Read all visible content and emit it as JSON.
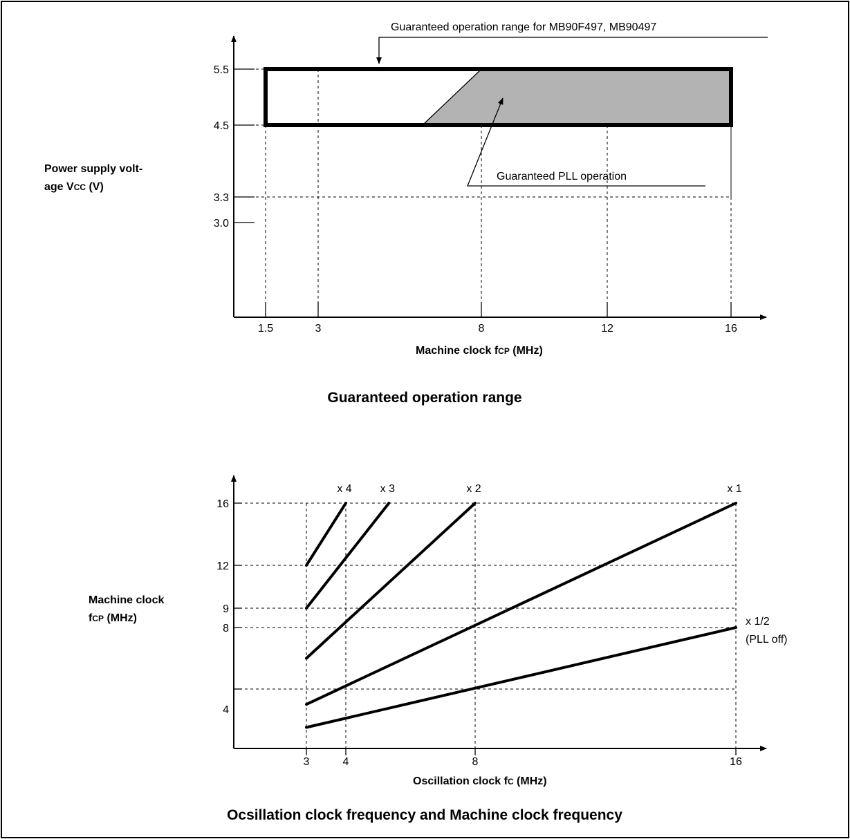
{
  "chart_data": [
    {
      "type": "area",
      "caption": "Guaranteed operation range",
      "xlabel": {
        "main": "Machine clock f",
        "sub": "CP",
        "unit": " (MHz)"
      },
      "ylabel": {
        "line1": "Power supply volt-",
        "line2_main": "age V",
        "line2_sub": "CC",
        "line2_unit": " (V)"
      },
      "x_ticks": [
        "1.5",
        "3",
        "8",
        "12",
        "16"
      ],
      "x_tick_values": [
        1.5,
        3,
        8,
        12,
        16
      ],
      "y_ticks": [
        "5.5",
        "4.5",
        "3.3",
        "3.0"
      ],
      "y_tick_values": [
        5.5,
        4.5,
        3.3,
        3.0
      ],
      "x_range": [
        0,
        18
      ],
      "y_range": [
        1.9,
        6.0
      ],
      "operation_range": {
        "x": [
          1.5,
          16
        ],
        "y": [
          4.5,
          5.5
        ]
      },
      "pll_region": [
        [
          6.2,
          4.5
        ],
        [
          8,
          5.5
        ],
        [
          16,
          5.5
        ],
        [
          16,
          4.5
        ]
      ],
      "dashed_3v3_extent": [
        1.5,
        16
      ],
      "annotations": [
        {
          "text": "Guaranteed operation range for MB90F497, MB90497",
          "target": "operation range box"
        },
        {
          "text": "Guaranteed PLL operation",
          "target": "shaded PLL region"
        }
      ],
      "fill_color": "#b3b3b3"
    },
    {
      "type": "line",
      "caption": "Ocsillation clock frequency and Machine clock frequency",
      "xlabel": {
        "main": "Oscillation clock f",
        "sub": "C",
        "unit": " (MHz)"
      },
      "ylabel": {
        "line1": "Machine clock",
        "line2_main": "f",
        "line2_sub": "CP",
        "line2_unit": " (MHz)"
      },
      "x_ticks": [
        "3",
        "4",
        "8",
        "16"
      ],
      "x_tick_values": [
        3,
        4,
        8,
        16
      ],
      "y_ticks": [
        "16",
        "12",
        "9",
        "8",
        "4"
      ],
      "y_tick_values": [
        16,
        12,
        9,
        8,
        4
      ],
      "x_range": [
        0,
        18
      ],
      "y_range": [
        0,
        18
      ],
      "dashed_y_levels": [
        16,
        12,
        9,
        8,
        4
      ],
      "series": [
        {
          "name": "x 4",
          "x": [
            3,
            4
          ],
          "y": [
            12,
            16
          ]
        },
        {
          "name": "x 3",
          "x": [
            3,
            5.333
          ],
          "y": [
            9,
            16
          ]
        },
        {
          "name": "x 2",
          "x": [
            3,
            8
          ],
          "y": [
            6,
            16
          ]
        },
        {
          "name": "x 1",
          "x": [
            3,
            16
          ],
          "y": [
            3,
            16
          ]
        },
        {
          "name": "x 1/2",
          "name_line2": "(PLL off)",
          "x": [
            3,
            16
          ],
          "y": [
            1.5,
            8
          ]
        }
      ]
    }
  ]
}
